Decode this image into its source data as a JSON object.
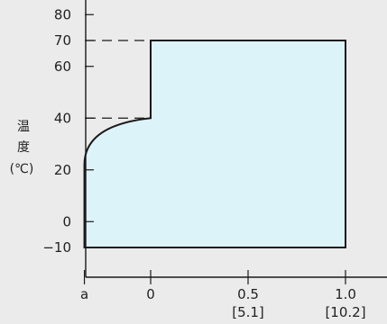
{
  "chart_data": {
    "type": "area",
    "ylabel": [
      "温",
      "度",
      "(℃)"
    ],
    "y_ticks": [
      {
        "value": 80,
        "label": "80"
      },
      {
        "value": 70,
        "label": "70"
      },
      {
        "value": 60,
        "label": "60"
      },
      {
        "value": 40,
        "label": "40"
      },
      {
        "value": 20,
        "label": "20"
      },
      {
        "value": 0,
        "label": "0"
      },
      {
        "value": -10,
        "label": "−10"
      }
    ],
    "x_ticks": [
      {
        "value": -0.34,
        "label": "a",
        "sub": ""
      },
      {
        "value": 0,
        "label": "0",
        "sub": ""
      },
      {
        "value": 0.5,
        "label": "0.5",
        "sub": "[5.1]"
      },
      {
        "value": 1.0,
        "label": "1.0",
        "sub": "[10.2]"
      }
    ],
    "ylim": [
      -20,
      92
    ],
    "xlim": [
      -0.34,
      1.0
    ],
    "region": {
      "fill": "#dcf3fa",
      "stroke": "#1a1a1a",
      "outline": [
        {
          "x": -0.34,
          "y": -10
        },
        {
          "x": 1.0,
          "y": -10
        },
        {
          "x": 1.0,
          "y": 70
        },
        {
          "x": 0,
          "y": 70
        },
        {
          "x": 0,
          "y": 40
        },
        {
          "x": -0.34,
          "y": 22
        }
      ]
    },
    "dashed_references": [
      {
        "y": 70,
        "x_to": 0
      },
      {
        "y": 40,
        "x_to": 0
      },
      {
        "y": -10,
        "x_to": -0.34
      }
    ]
  }
}
